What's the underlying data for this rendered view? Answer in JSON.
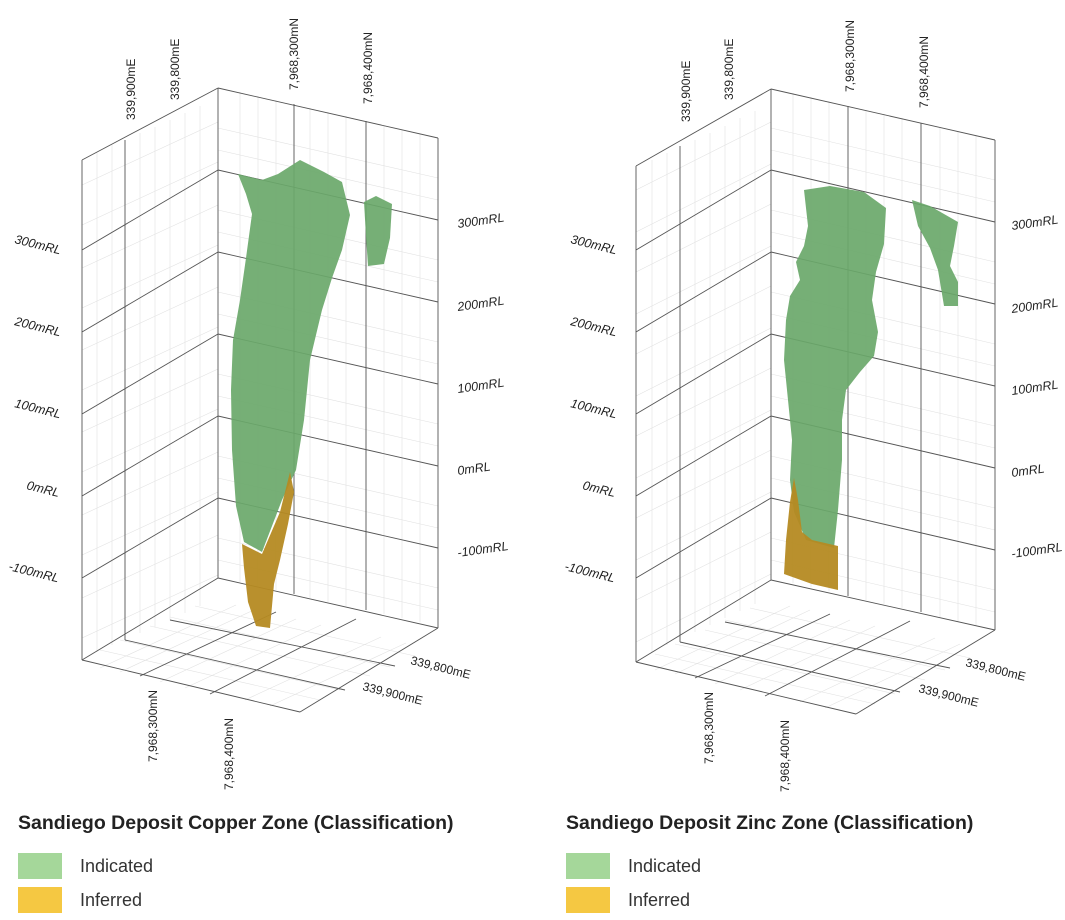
{
  "colors": {
    "indicated": "#6aa86a",
    "inferred": "#b58a22",
    "indicated_legend": "#a5d79a",
    "inferred_legend": "#f5c842"
  },
  "panels": [
    {
      "title": "Sandiego Deposit Copper Zone (Classification)",
      "legend": [
        {
          "label": "Indicated",
          "color": "#a5d79a"
        },
        {
          "label": "Inferred",
          "color": "#f5c842"
        }
      ],
      "easting_top": [
        "339,900mE",
        "339,800mE"
      ],
      "northing_top": [
        "7,968,300mN",
        "7,968,400mN"
      ],
      "rl_left": [
        "300mRL",
        "200mRL",
        "100mRL",
        "0mRL",
        "-100mRL"
      ],
      "rl_right": [
        "300mRL",
        "200mRL",
        "100mRL",
        "0mRL",
        "-100mRL"
      ],
      "easting_bottom": [
        "339,800mE",
        "339,900mE"
      ],
      "northing_bottom": [
        "7,968,300mN",
        "7,968,400mN"
      ]
    },
    {
      "title": "Sandiego Deposit Zinc Zone (Classification)",
      "legend": [
        {
          "label": "Indicated",
          "color": "#a5d79a"
        },
        {
          "label": "Inferred",
          "color": "#f5c842"
        }
      ],
      "easting_top": [
        "339,900mE",
        "339,800mE"
      ],
      "northing_top": [
        "7,968,300mN",
        "7,968,400mN"
      ],
      "rl_left": [
        "300mRL",
        "200mRL",
        "100mRL",
        "0mRL",
        "-100mRL"
      ],
      "rl_right": [
        "300mRL",
        "200mRL",
        "100mRL",
        "0mRL",
        "-100mRL"
      ],
      "easting_bottom": [
        "339,800mE",
        "339,900mE"
      ],
      "northing_bottom": [
        "7,968,300mN",
        "7,968,400mN"
      ]
    }
  ]
}
